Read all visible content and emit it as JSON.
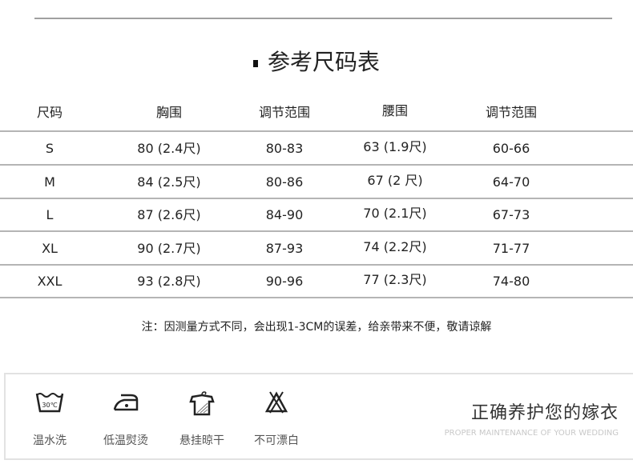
{
  "title": "参考尺码表",
  "table": {
    "headers": [
      "尺码",
      "胸围",
      "调节范围",
      "腰围",
      "调节范围"
    ],
    "rows": [
      [
        "S",
        "80 (2.4尺)",
        "80-83",
        "63 (1.9尺)",
        "60-66"
      ],
      [
        "M",
        "84 (2.5尺)",
        "80-86",
        "67 (2  尺)",
        "64-70"
      ],
      [
        "L",
        "87 (2.6尺)",
        "84-90",
        "70 (2.1尺)",
        "67-73"
      ],
      [
        "XL",
        "90 (2.7尺)",
        "87-93",
        "74 (2.2尺)",
        "71-77"
      ],
      [
        "XXL",
        "93 (2.8尺)",
        "90-96",
        "77 (2.3尺)",
        "74-80"
      ]
    ]
  },
  "note": "注：因测量方式不同，会出现1-3CM的误差，给亲带来不便，敬请谅解",
  "care": {
    "items": [
      {
        "icon": "wash-30-icon",
        "label": "温水洗",
        "icon_text": "30℃"
      },
      {
        "icon": "low-iron-icon",
        "label": "低温熨烫"
      },
      {
        "icon": "hang-dry-icon",
        "label": "悬挂晾干"
      },
      {
        "icon": "no-bleach-icon",
        "label": "不可漂白"
      }
    ],
    "title": "正确养护您的嫁衣",
    "subtitle": "PROPER MAINTENANCE OF YOUR WEDDING"
  }
}
